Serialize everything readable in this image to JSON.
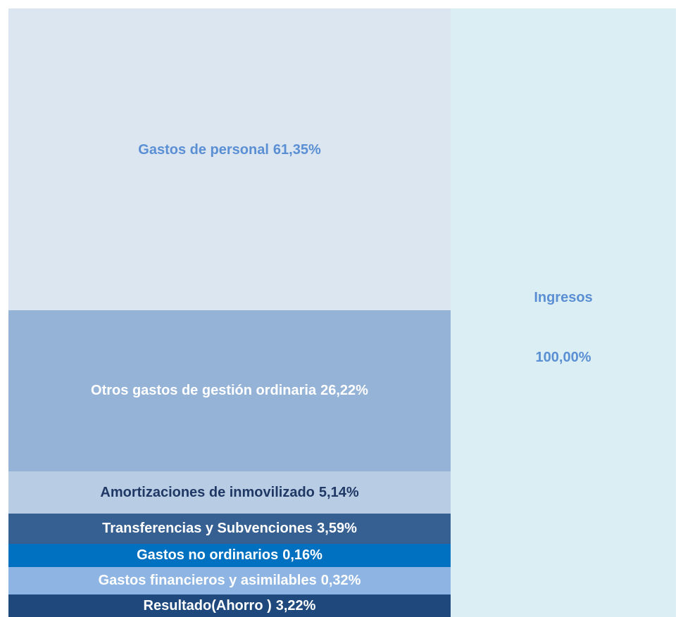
{
  "blocks": [
    {
      "name": "Gastos de personal",
      "value": "61,35%"
    },
    {
      "name": "Otros gastos de gestión ordinaria",
      "value": "26,22%"
    },
    {
      "name": "Amortizaciones de inmovilizado",
      "value": "5,14%"
    },
    {
      "name": "Transferencias y Subvenciones",
      "value": "3,59%"
    },
    {
      "name": "Gastos no ordinarios",
      "value": "0,16%"
    },
    {
      "name": "Gastos financieros y asimilables",
      "value": "0,32%"
    },
    {
      "name": "Resultado(Ahorro )",
      "value": "3,22%"
    }
  ],
  "income": {
    "name": "Ingresos",
    "value": "100,00%"
  }
}
